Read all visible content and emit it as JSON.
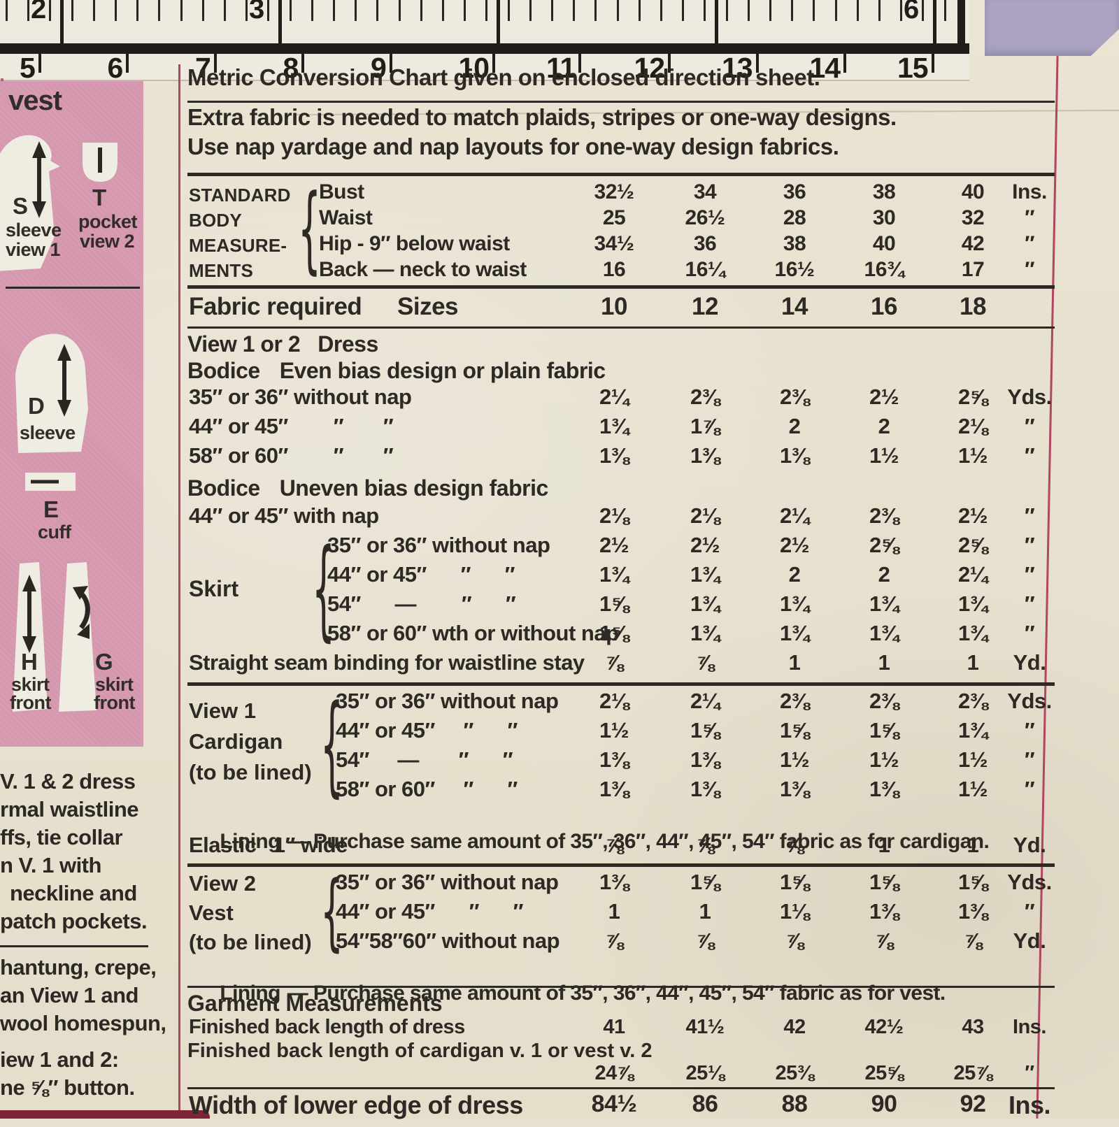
{
  "ruler": {
    "top_numbers": [
      "2",
      "3",
      "6"
    ],
    "bottom_numbers": [
      "5",
      "6",
      "7",
      "8",
      "9",
      "10",
      "11",
      "12",
      "13",
      "14",
      "15"
    ]
  },
  "sidebar": {
    "title": "vest",
    "pieces": {
      "sleeve1": {
        "letter": "S",
        "line1": "sleeve",
        "line2": "view 1"
      },
      "pocket": {
        "letter": "T",
        "line1": "pocket",
        "line2": "view 2"
      },
      "sleeve2": {
        "letter": "D",
        "line1": "sleeve"
      },
      "cuff": {
        "letter": "E",
        "line1": "cuff"
      },
      "skirt_h": {
        "letter": "H",
        "line1": "skirt",
        "line2": "front"
      },
      "skirt_g": {
        "letter": "G",
        "line1": "skirt",
        "line2": "front"
      }
    },
    "notes_block1": [
      "V. 1 & 2 dress",
      "rmal waistline",
      "ffs, tie collar",
      "n V. 1 with",
      "neckline and",
      "patch pockets."
    ],
    "notes_block2": [
      "hantung, crepe,",
      "an View 1 and",
      "wool homespun,"
    ],
    "notes_block3": [
      "iew 1 and 2:",
      "ne ⅝″ button."
    ]
  },
  "table": {
    "metric_note": "Metric Conversion Chart given on enclosed direction sheet.",
    "extra_note1": "Extra fabric is needed to match plaids, stripes or one-way designs.",
    "extra_note2": "Use nap yardage and nap layouts for one-way design fabrics.",
    "body": {
      "group": [
        "STANDARD",
        "BODY",
        "MEASURE-",
        "MENTS"
      ],
      "rows": [
        {
          "label": "Bust",
          "values": [
            "32½",
            "34",
            "36",
            "38",
            "40"
          ],
          "unit": "Ins."
        },
        {
          "label": "Waist",
          "values": [
            "25",
            "26½",
            "28",
            "30",
            "32"
          ],
          "unit": "″"
        },
        {
          "label": "Hip - 9″ below waist",
          "values": [
            "34½",
            "36",
            "38",
            "40",
            "42"
          ],
          "unit": "″"
        },
        {
          "label": "Back — neck to waist",
          "values": [
            "16",
            "16¼",
            "16½",
            "16¾",
            "17"
          ],
          "unit": "″"
        }
      ]
    },
    "sizes": {
      "label": "Fabric required",
      "sizes_word": "Sizes",
      "values": [
        "10",
        "12",
        "14",
        "16",
        "18"
      ],
      "unit": ""
    },
    "dress_heading": "View 1 or 2   Dress",
    "bodice_even_heading": {
      "bold": "Bodice",
      "rest": "Even bias design or plain fabric"
    },
    "bodice_even_rows": [
      {
        "label": "35″ or 36″ without nap",
        "values": [
          "2¼",
          "2⅜",
          "2⅜",
          "2½",
          "2⅝"
        ],
        "unit": "Yds."
      },
      {
        "label": "44″ or 45″        ″       ″",
        "values": [
          "1¾",
          "1⅞",
          "2",
          "2",
          "2⅛"
        ],
        "unit": "″"
      },
      {
        "label": "58″ or 60″        ″       ″",
        "values": [
          "1⅜",
          "1⅜",
          "1⅜",
          "1½",
          "1½"
        ],
        "unit": "″"
      }
    ],
    "bodice_uneven_heading": {
      "bold": "Bodice",
      "rest": "Uneven bias design fabric"
    },
    "bodice_uneven_rows": [
      {
        "label": "44″ or 45″ with nap",
        "values": [
          "2⅛",
          "2⅛",
          "2¼",
          "2⅜",
          "2½"
        ],
        "unit": "″"
      }
    ],
    "skirt": {
      "group": "Skirt",
      "rows": [
        {
          "label": "35″ or 36″ without nap",
          "values": [
            "2½",
            "2½",
            "2½",
            "2⅝",
            "2⅝"
          ],
          "unit": "″"
        },
        {
          "label": "44″ or 45″      ″      ″",
          "values": [
            "1¾",
            "1¾",
            "2",
            "2",
            "2¼"
          ],
          "unit": "″"
        },
        {
          "label": "54″      —        ″      ″",
          "values": [
            "1⅝",
            "1¾",
            "1¾",
            "1¾",
            "1¾"
          ],
          "unit": "″"
        },
        {
          "label": "58″ or 60″ wth or without nap",
          "values": [
            "1⅝",
            "1¾",
            "1¾",
            "1¾",
            "1¾"
          ],
          "unit": "″"
        }
      ]
    },
    "binding_row": {
      "label": "Straight seam binding for waistline stay",
      "values": [
        "⅞",
        "⅞",
        "1",
        "1",
        "1"
      ],
      "unit": "Yd."
    },
    "cardigan": {
      "group": [
        "View 1",
        "Cardigan",
        "(to be lined)"
      ],
      "rows": [
        {
          "label": "35″ or 36″ without nap",
          "values": [
            "2⅛",
            "2¼",
            "2⅜",
            "2⅜",
            "2⅜"
          ],
          "unit": "Yds."
        },
        {
          "label": "44″ or 45″     ″      ″",
          "values": [
            "1½",
            "1⅝",
            "1⅝",
            "1⅝",
            "1¾"
          ],
          "unit": "″"
        },
        {
          "label": "54″     —       ″      ″",
          "values": [
            "1⅜",
            "1⅜",
            "1½",
            "1½",
            "1½"
          ],
          "unit": "″"
        },
        {
          "label": "58″ or 60″     ″      ″",
          "values": [
            "1⅜",
            "1⅜",
            "1⅜",
            "1⅜",
            "1½"
          ],
          "unit": "″"
        }
      ]
    },
    "lining_cardigan": {
      "bold": "Lining",
      "rest": "— Purchase same amount of 35″, 36″, 44″, 45″, 54″ fabric as for cardigan."
    },
    "elastic_row": {
      "label": "Elastic   1″ wide",
      "values": [
        "⅞",
        "⅞",
        "⅞",
        "1",
        "1"
      ],
      "unit": "Yd."
    },
    "vest": {
      "group": [
        "View 2",
        "Vest",
        "(to be lined)"
      ],
      "rows": [
        {
          "label": "35″ or 36″ without nap",
          "values": [
            "1⅜",
            "1⅝",
            "1⅝",
            "1⅝",
            "1⅝"
          ],
          "unit": "Yds."
        },
        {
          "label": "44″ or 45″      ″      ″",
          "values": [
            "1",
            "1",
            "1⅛",
            "1⅜",
            "1⅜"
          ],
          "unit": "″"
        },
        {
          "label": "54″58″60″ without nap",
          "values": [
            "⅞",
            "⅞",
            "⅞",
            "⅞",
            "⅞"
          ],
          "unit": "Yd."
        }
      ]
    },
    "lining_vest": {
      "bold": "Lining",
      "rest": "— Purchase same amount of 35″, 36″, 44″, 45″, 54″ fabric as for vest."
    },
    "garment_heading": "Garment Measurements",
    "garment_row1": {
      "label": "Finished back length of dress",
      "values": [
        "41",
        "41½",
        "42",
        "42½",
        "43"
      ],
      "unit": "Ins."
    },
    "garment_label2": "Finished back length of cardigan v. 1 or vest v. 2",
    "garment_row2": {
      "label": "",
      "values": [
        "24⅞",
        "25⅛",
        "25⅜",
        "25⅝",
        "25⅞"
      ],
      "unit": "″"
    },
    "width_row": {
      "label": "Width of lower edge of dress",
      "values": [
        "84½",
        "86",
        "88",
        "90",
        "92"
      ],
      "unit": "Ins."
    }
  },
  "colors": {
    "paper": "#e7e1d0",
    "pink": "#d79cb2",
    "lavender": "#aba3c1",
    "crimson": "#b24560",
    "ink": "#2e2924"
  }
}
